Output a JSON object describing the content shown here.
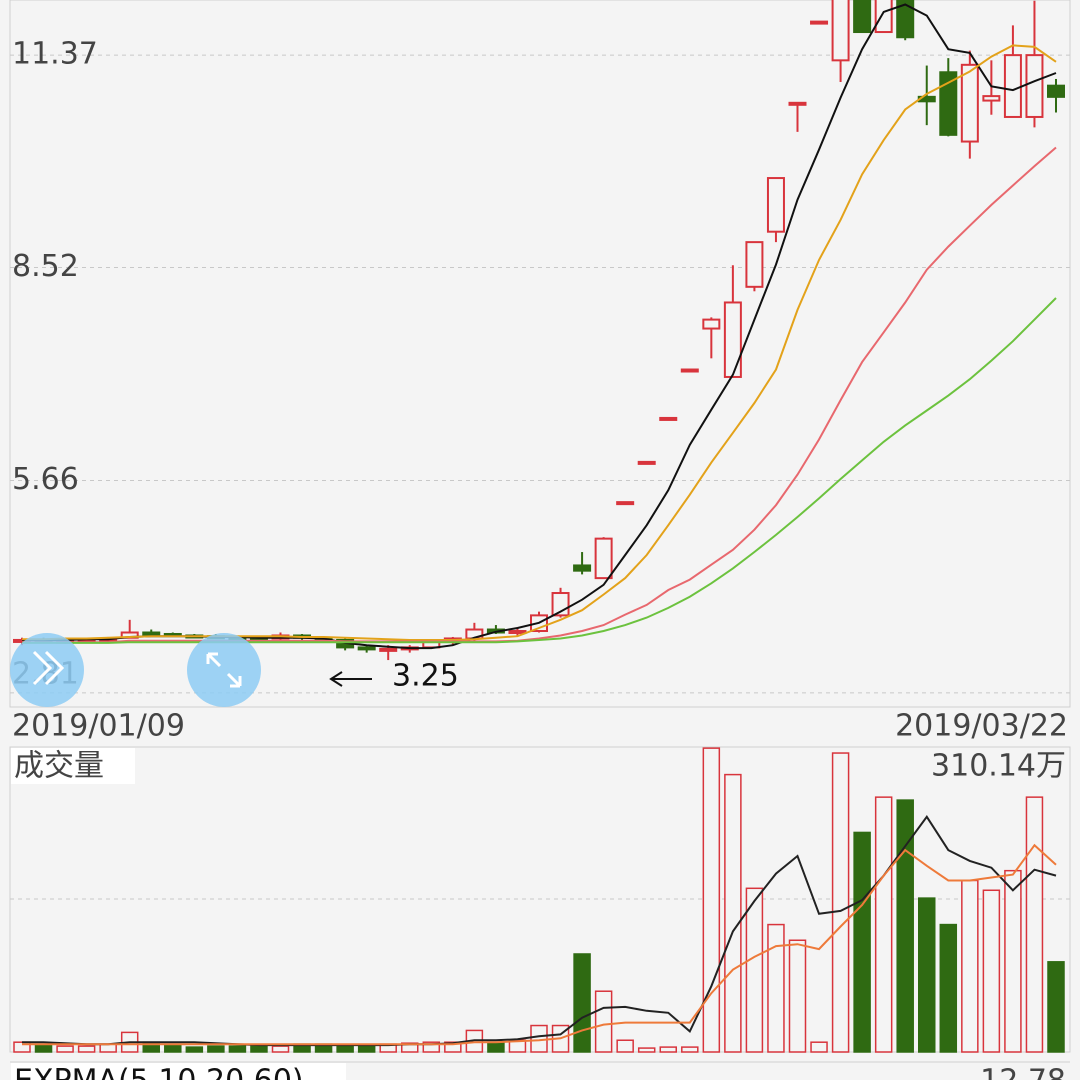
{
  "chart_data": [
    {
      "type": "candlestick",
      "ylim": [
        2.62,
        12.11
      ],
      "yticks": [
        11.37,
        8.52,
        5.66,
        2.81
      ],
      "start_date": "2019/01/09",
      "end_date": "2019/03/22",
      "low_marker": 3.25,
      "up_color": "#d8343c",
      "down_color": "#2f6a12",
      "open": [
        3.5,
        3.52,
        3.5,
        3.51,
        3.53,
        3.55,
        3.62,
        3.6,
        3.58,
        3.57,
        3.56,
        3.55,
        3.54,
        3.58,
        3.55,
        3.52,
        3.42,
        3.38,
        3.4,
        3.42,
        3.5,
        3.54,
        3.66,
        3.62,
        3.64,
        3.85,
        4.52,
        4.35,
        5.37,
        5.91,
        6.5,
        7.15,
        7.7,
        7.05,
        8.26,
        9.0,
        10.73,
        11.82,
        11.3,
        12.3,
        11.68,
        12.3,
        10.81,
        11.14,
        10.21,
        10.76,
        10.54,
        10.54,
        10.96
      ],
      "high": [
        3.55,
        3.55,
        3.53,
        3.55,
        3.56,
        3.79,
        3.66,
        3.62,
        3.6,
        3.6,
        3.58,
        3.57,
        3.62,
        3.6,
        3.57,
        3.54,
        3.45,
        3.45,
        3.45,
        3.52,
        3.56,
        3.75,
        3.72,
        3.68,
        3.9,
        4.22,
        4.7,
        4.9,
        5.37,
        5.91,
        6.5,
        7.15,
        7.85,
        8.55,
        8.86,
        9.72,
        10.73,
        11.82,
        12.3,
        12.3,
        12.3,
        12.3,
        11.23,
        11.33,
        11.43,
        11.3,
        11.77,
        12.1,
        11.05
      ],
      "low": [
        3.45,
        3.48,
        3.47,
        3.49,
        3.5,
        3.55,
        3.58,
        3.56,
        3.55,
        3.54,
        3.53,
        3.52,
        3.52,
        3.52,
        3.5,
        3.38,
        3.35,
        3.25,
        3.35,
        3.4,
        3.45,
        3.5,
        3.6,
        3.58,
        3.62,
        3.82,
        4.4,
        4.35,
        5.37,
        5.91,
        6.5,
        7.15,
        7.3,
        7.05,
        8.2,
        8.86,
        10.34,
        11.82,
        11.01,
        11.68,
        11.68,
        11.57,
        10.43,
        10.28,
        9.98,
        10.57,
        10.54,
        10.4,
        10.6
      ],
      "close": [
        3.52,
        3.5,
        3.51,
        3.53,
        3.54,
        3.62,
        3.6,
        3.58,
        3.57,
        3.56,
        3.55,
        3.54,
        3.58,
        3.55,
        3.52,
        3.42,
        3.4,
        3.4,
        3.42,
        3.5,
        3.54,
        3.66,
        3.62,
        3.64,
        3.85,
        4.15,
        4.45,
        4.88,
        5.37,
        5.91,
        6.5,
        7.15,
        7.82,
        8.05,
        8.86,
        9.72,
        10.73,
        11.82,
        12.2,
        11.68,
        12.3,
        11.61,
        10.75,
        10.3,
        11.24,
        10.82,
        11.37,
        11.37,
        10.81
      ],
      "ma_lines": [
        {
          "color": "#111111",
          "values": [
            3.52,
            3.52,
            3.52,
            3.53,
            3.53,
            3.56,
            3.57,
            3.57,
            3.57,
            3.56,
            3.56,
            3.55,
            3.55,
            3.55,
            3.54,
            3.48,
            3.45,
            3.43,
            3.41,
            3.41,
            3.45,
            3.55,
            3.63,
            3.68,
            3.75,
            3.9,
            4.06,
            4.26,
            4.66,
            5.06,
            5.53,
            6.14,
            6.61,
            7.08,
            7.82,
            8.56,
            9.43,
            10.1,
            10.8,
            11.45,
            11.95,
            12.05,
            11.9,
            11.45,
            11.4,
            10.95,
            10.9,
            11.02,
            11.13
          ]
        },
        {
          "color": "#e3a21a",
          "values": [
            3.53,
            3.53,
            3.54,
            3.54,
            3.55,
            3.56,
            3.57,
            3.57,
            3.57,
            3.57,
            3.57,
            3.57,
            3.57,
            3.56,
            3.56,
            3.55,
            3.54,
            3.53,
            3.52,
            3.52,
            3.52,
            3.53,
            3.55,
            3.57,
            3.68,
            3.79,
            3.92,
            4.13,
            4.35,
            4.66,
            5.06,
            5.47,
            5.9,
            6.3,
            6.7,
            7.15,
            7.95,
            8.62,
            9.16,
            9.77,
            10.23,
            10.64,
            10.85,
            11.0,
            11.15,
            11.35,
            11.5,
            11.48,
            11.28
          ]
        },
        {
          "color": "#e8686e",
          "values": [
            3.49,
            3.49,
            3.49,
            3.49,
            3.49,
            3.51,
            3.51,
            3.51,
            3.51,
            3.51,
            3.51,
            3.51,
            3.51,
            3.51,
            3.51,
            3.5,
            3.5,
            3.5,
            3.5,
            3.5,
            3.5,
            3.5,
            3.5,
            3.51,
            3.54,
            3.58,
            3.64,
            3.72,
            3.86,
            3.99,
            4.19,
            4.33,
            4.53,
            4.73,
            5.0,
            5.33,
            5.74,
            6.21,
            6.74,
            7.25,
            7.65,
            8.05,
            8.49,
            8.8,
            9.08,
            9.36,
            9.62,
            9.88,
            10.13
          ]
        },
        {
          "color": "#6cc23e",
          "values": [
            3.48,
            3.48,
            3.48,
            3.48,
            3.48,
            3.49,
            3.49,
            3.49,
            3.49,
            3.49,
            3.49,
            3.49,
            3.49,
            3.49,
            3.49,
            3.49,
            3.49,
            3.49,
            3.49,
            3.49,
            3.49,
            3.49,
            3.49,
            3.5,
            3.52,
            3.54,
            3.58,
            3.64,
            3.72,
            3.82,
            3.95,
            4.1,
            4.28,
            4.48,
            4.7,
            4.93,
            5.17,
            5.42,
            5.68,
            5.93,
            6.18,
            6.4,
            6.6,
            6.8,
            7.02,
            7.27,
            7.53,
            7.82,
            8.11
          ]
        }
      ]
    },
    {
      "type": "volume",
      "title": "成交量",
      "ylim": [
        0,
        310.14
      ],
      "max_label": {
        "value": 310.14,
        "label": "310.14万"
      },
      "values": [
        10,
        8,
        6,
        6,
        8,
        20,
        10,
        8,
        5,
        6,
        6,
        6,
        6,
        8,
        8,
        6,
        7,
        8,
        9,
        10,
        10,
        22,
        10,
        12,
        27,
        27,
        100,
        62,
        12,
        4,
        5,
        5,
        310,
        283,
        167,
        130,
        114,
        10,
        305,
        224,
        260,
        257,
        157,
        130,
        175,
        165,
        185,
        260,
        92
      ],
      "ma_lines": [
        {
          "color": "#222222",
          "values": [
            10,
            10,
            9,
            8,
            8,
            10,
            10,
            10,
            10,
            9,
            8,
            7,
            7,
            7,
            7,
            7,
            7,
            7,
            8,
            8,
            9,
            12,
            12,
            13,
            16,
            18,
            35,
            45,
            46,
            42,
            40,
            21,
            67,
            123,
            154,
            182,
            200,
            141,
            144,
            155,
            180,
            210,
            240,
            206,
            195,
            188,
            165,
            186,
            180
          ]
        },
        {
          "color": "#ee7a3a",
          "values": [
            8,
            8,
            8,
            8,
            8,
            8,
            8,
            8,
            8,
            8,
            8,
            8,
            8,
            8,
            8,
            8,
            8,
            8,
            8,
            8,
            8,
            10,
            10,
            11,
            12,
            14,
            22,
            28,
            30,
            30,
            30,
            30,
            60,
            84,
            97,
            108,
            110,
            105,
            128,
            150,
            180,
            206,
            190,
            175,
            175,
            178,
            181,
            211,
            191
          ]
        }
      ]
    }
  ],
  "footer_panel": {
    "title": "EXPMA(5,10,20,60)",
    "value": 12.78
  }
}
